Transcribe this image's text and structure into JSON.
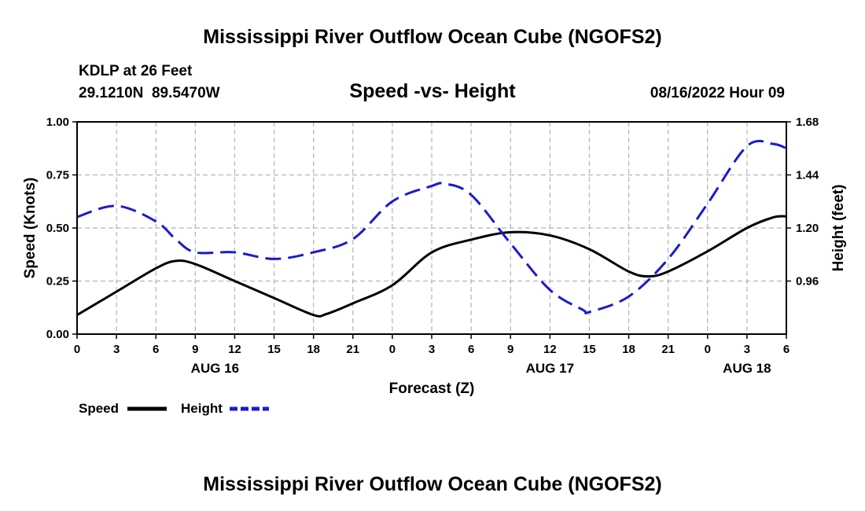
{
  "title": "Mississippi River Outflow Ocean Cube (NGOFS2)",
  "footer_title": "Mississippi River Outflow Ocean Cube (NGOFS2)",
  "station": {
    "name": "KDLP at 26 Feet",
    "coords": "29.1210N  89.5470W"
  },
  "timestamp": "08/16/2022 Hour 09",
  "legend": {
    "speed_label": "Speed",
    "height_label": "Height"
  },
  "chart_data": {
    "type": "line",
    "title": "Speed -vs- Height",
    "xlabel": "Forecast (Z)",
    "ylabel_left": "Speed (Knots)",
    "ylabel_right": "Height (feet)",
    "xlim": [
      0,
      54
    ],
    "ylim_left": [
      0,
      1
    ],
    "ylim_right": [
      0.72,
      1.68
    ],
    "grid": true,
    "x_ticks": [
      0,
      3,
      6,
      9,
      12,
      15,
      18,
      21,
      24,
      27,
      30,
      33,
      36,
      39,
      42,
      45,
      48,
      51,
      54
    ],
    "x_tick_labels": [
      "0",
      "3",
      "6",
      "9",
      "12",
      "15",
      "18",
      "21",
      "0",
      "3",
      "6",
      "9",
      "12",
      "15",
      "18",
      "21",
      "0",
      "3",
      "6"
    ],
    "day_labels": [
      {
        "label": "AUG 16",
        "x": 10.5
      },
      {
        "label": "AUG 17",
        "x": 36
      },
      {
        "label": "AUG 18",
        "x": 51
      }
    ],
    "left_ticks": [
      0,
      0.25,
      0.5,
      0.75,
      1
    ],
    "left_tick_labels": [
      "0.00",
      "0.25",
      "0.50",
      "0.75",
      "1.00"
    ],
    "right_ticks": [
      0.96,
      1.2,
      1.44,
      1.68
    ],
    "right_tick_labels": [
      "0.96",
      "1.20",
      "1.44",
      "1.68"
    ],
    "series": [
      {
        "name": "Speed",
        "axis": "left",
        "color": "#000000",
        "dash": "solid",
        "x": [
          0,
          3,
          6,
          7.5,
          9,
          12,
          15,
          18,
          19,
          21,
          24,
          27,
          30,
          33,
          36,
          39,
          42,
          43.5,
          45,
          48,
          51,
          53,
          54
        ],
        "values": [
          0.09,
          0.2,
          0.31,
          0.345,
          0.33,
          0.25,
          0.17,
          0.09,
          0.095,
          0.145,
          0.23,
          0.385,
          0.445,
          0.48,
          0.465,
          0.4,
          0.295,
          0.272,
          0.295,
          0.39,
          0.5,
          0.55,
          0.555
        ]
      },
      {
        "name": "Height",
        "axis": "right",
        "color": "#1a1ad0",
        "dash": "dashed",
        "x": [
          0,
          3,
          6,
          7.5,
          9,
          12,
          15,
          18,
          21,
          24,
          27,
          28,
          30,
          33,
          36,
          38.5,
          39,
          42,
          45,
          48,
          51,
          53,
          54
        ],
        "values": [
          1.25,
          1.3,
          1.23,
          1.15,
          1.09,
          1.09,
          1.06,
          1.09,
          1.15,
          1.32,
          1.39,
          1.4,
          1.35,
          1.13,
          0.92,
          0.83,
          0.82,
          0.89,
          1.06,
          1.31,
          1.57,
          1.58,
          1.56
        ]
      }
    ]
  }
}
